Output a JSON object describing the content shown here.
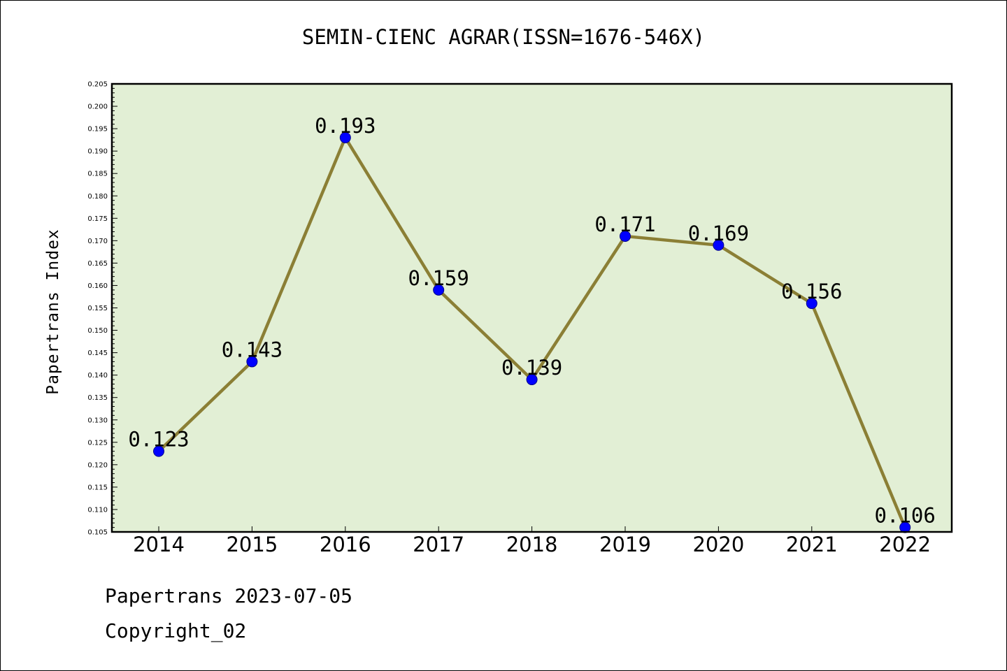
{
  "chart_data": {
    "type": "line",
    "title": "SEMIN-CIENC AGRAR(ISSN=1676-546X)",
    "ylabel": "Papertrans Index",
    "xlabel": "",
    "categories": [
      "2014",
      "2015",
      "2016",
      "2017",
      "2018",
      "2019",
      "2020",
      "2021",
      "2022"
    ],
    "series": [
      {
        "values": [
          0.123,
          0.143,
          0.193,
          0.159,
          0.139,
          0.171,
          0.169,
          0.156,
          0.106
        ]
      }
    ],
    "data_labels": [
      "0.123",
      "0.143",
      "0.193",
      "0.159",
      "0.139",
      "0.171",
      "0.169",
      "0.156",
      "0.106"
    ],
    "ylim": [
      0.105,
      0.205
    ],
    "yticks": [
      "0.105",
      "0.110",
      "0.115",
      "0.120",
      "0.125",
      "0.130",
      "0.135",
      "0.140",
      "0.145",
      "0.150",
      "0.155",
      "0.160",
      "0.165",
      "0.170",
      "0.175",
      "0.180",
      "0.185",
      "0.190",
      "0.195",
      "0.200",
      "0.205"
    ],
    "grid": false,
    "legend": "none",
    "colors": {
      "plot_background": "#e2efd5",
      "line": "#8b7f35",
      "marker": "#0000ff",
      "marker_edge": "#00008b"
    }
  },
  "footer": {
    "date_text": "Papertrans 2023-07-05",
    "copyright_text": "Copyright_02"
  }
}
